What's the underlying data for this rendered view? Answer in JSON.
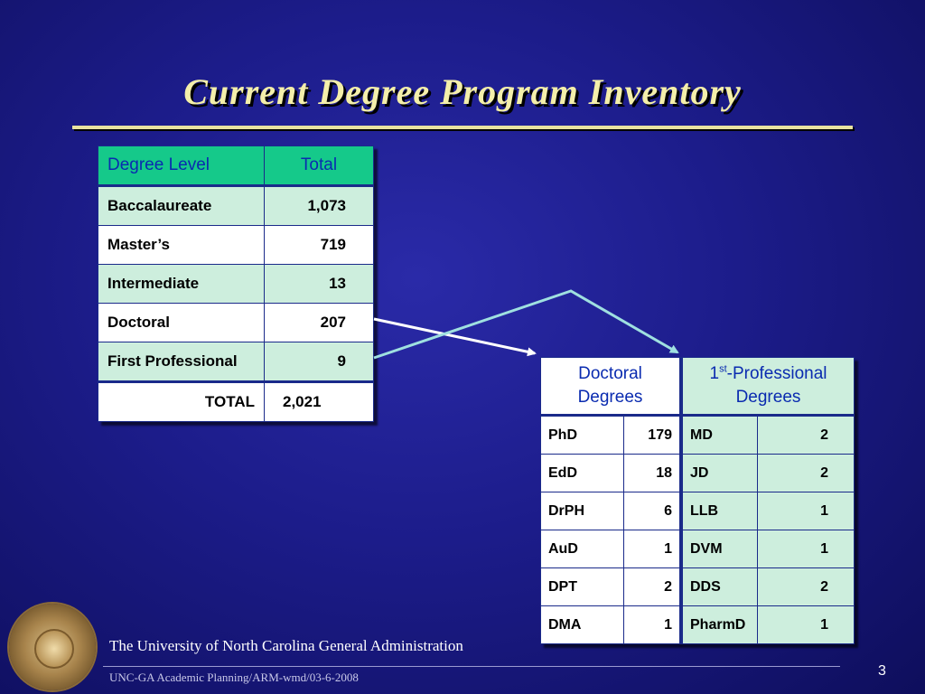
{
  "slide": {
    "title": "Current Degree Program Inventory",
    "organization": "The University of North Carolina General Administration",
    "footer": "UNC-GA Academic Planning/ARM-wmd/03-6-2008",
    "page_number": "3"
  },
  "main_table": {
    "header": {
      "level": "Degree Level",
      "total": "Total"
    },
    "rows": [
      {
        "level": "Baccalaureate",
        "total": "1,073"
      },
      {
        "level": "Master’s",
        "total": "719"
      },
      {
        "level": "Intermediate",
        "total": "13"
      },
      {
        "level": "Doctoral",
        "total": "207"
      },
      {
        "level": "First Professional",
        "total": "9"
      }
    ],
    "total_row": {
      "label": "TOTAL",
      "value": "2,021"
    }
  },
  "breakdown_table": {
    "doctoral_header_line1": "Doctoral",
    "doctoral_header_line2": "Degrees",
    "professional_header_num": "1",
    "professional_header_sup": "st",
    "professional_header_rest": "-Professional",
    "professional_header_line2": "Degrees",
    "rows": [
      {
        "doc": "PhD",
        "doc_n": "179",
        "prof": "MD",
        "prof_n": "2"
      },
      {
        "doc": "EdD",
        "doc_n": "18",
        "prof": "JD",
        "prof_n": "2"
      },
      {
        "doc": "DrPH",
        "doc_n": "6",
        "prof": "LLB",
        "prof_n": "1"
      },
      {
        "doc": "AuD",
        "doc_n": "1",
        "prof": "DVM",
        "prof_n": "1"
      },
      {
        "doc": "DPT",
        "doc_n": "2",
        "prof": "DDS",
        "prof_n": "2"
      },
      {
        "doc": "DMA",
        "doc_n": "1",
        "prof": "PharmD",
        "prof_n": "1"
      }
    ]
  },
  "colors": {
    "header_green": "#15c98a",
    "row_tint": "#cdeedd",
    "title_yellow": "#f4efaa",
    "arrow_white": "#ffffff",
    "arrow_teal": "#9fe0e0"
  },
  "icons": {
    "seal": "university-seal-icon"
  }
}
